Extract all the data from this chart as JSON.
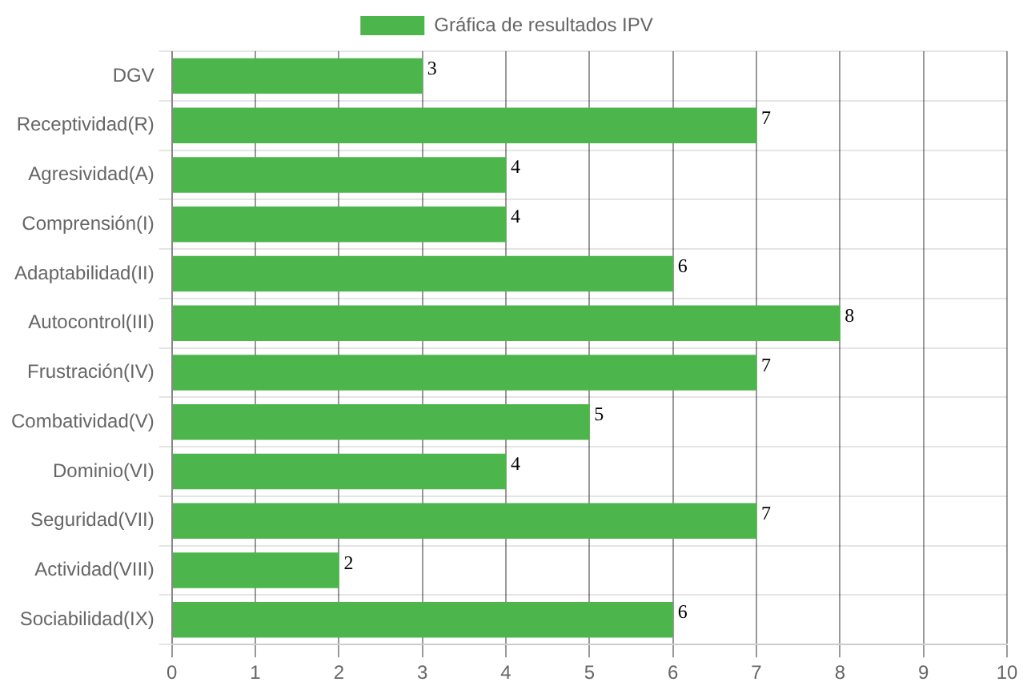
{
  "chart_data": {
    "type": "bar",
    "orientation": "horizontal",
    "categories": [
      "DGV",
      "Receptividad(R)",
      "Agresividad(A)",
      "Comprensión(I)",
      "Adaptabilidad(II)",
      "Autocontrol(III)",
      "Frustración(IV)",
      "Combatividad(V)",
      "Dominio(VI)",
      "Seguridad(VII)",
      "Actividad(VIII)",
      "Sociabilidad(IX)"
    ],
    "series": [
      {
        "name": "Gráfica de resultados IPV",
        "color": "#4cb54c",
        "values": [
          3,
          7,
          4,
          4,
          6,
          8,
          7,
          5,
          4,
          7,
          2,
          6
        ]
      }
    ],
    "xlim": [
      0,
      10
    ],
    "xticks": [
      0,
      1,
      2,
      3,
      4,
      5,
      6,
      7,
      8,
      9,
      10
    ],
    "grid": true,
    "legend": "top",
    "data_labels": true
  }
}
